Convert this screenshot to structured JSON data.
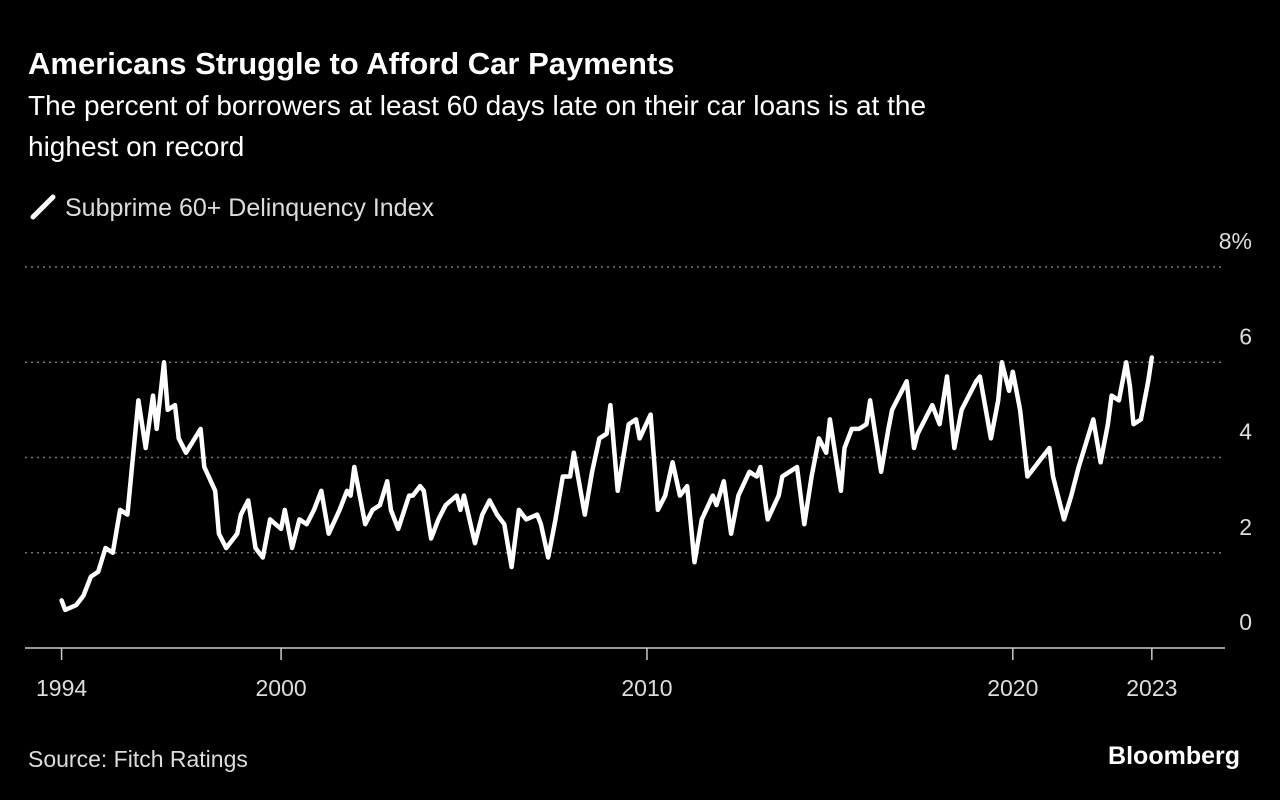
{
  "chart_data": {
    "type": "line",
    "title": "Americans Struggle to Afford Car Payments",
    "subtitle": [
      "The percent of borrowers at least 60 days late on their car loans is at the",
      "highest on record"
    ],
    "source": "Source: Fitch Ratings",
    "brand": "Bloomberg",
    "xlim": [
      1993,
      2025.8
    ],
    "ylim": [
      0,
      8
    ],
    "xticks": [
      1994,
      2000,
      2010,
      2020,
      {
        "value": 2023.8,
        "label": "2023"
      }
    ],
    "yticks": [
      0,
      2,
      4,
      6,
      {
        "value": 8,
        "label": "8%"
      }
    ],
    "grid": true,
    "x": [
      1994.0,
      1994.1,
      1994.4,
      1994.6,
      1994.8,
      1995.0,
      1995.2,
      1995.4,
      1995.6,
      1995.8,
      1996.1,
      1996.3,
      1996.5,
      1996.6,
      1996.8,
      1996.9,
      1997.1,
      1997.2,
      1997.4,
      1997.8,
      1997.9,
      1998.2,
      1998.3,
      1998.5,
      1998.8,
      1998.9,
      1999.1,
      1999.3,
      1999.5,
      1999.7,
      2000.0,
      2000.1,
      2000.3,
      2000.5,
      2000.7,
      2000.9,
      2001.1,
      2001.3,
      2001.6,
      2001.8,
      2001.9,
      2002.0,
      2002.3,
      2002.5,
      2002.7,
      2002.9,
      2003.0,
      2003.2,
      2003.5,
      2003.6,
      2003.8,
      2003.9,
      2004.1,
      2004.3,
      2004.5,
      2004.8,
      2004.9,
      2005.0,
      2005.3,
      2005.5,
      2005.7,
      2005.9,
      2006.1,
      2006.3,
      2006.5,
      2006.7,
      2007.0,
      2007.1,
      2007.3,
      2007.5,
      2007.7,
      2007.9,
      2008.0,
      2008.3,
      2008.5,
      2008.7,
      2008.9,
      2009.0,
      2009.2,
      2009.5,
      2009.7,
      2009.8,
      2010.1,
      2010.3,
      2010.5,
      2010.7,
      2010.9,
      2011.1,
      2011.3,
      2011.5,
      2011.8,
      2011.9,
      2012.1,
      2012.3,
      2012.5,
      2012.8,
      2013.0,
      2013.1,
      2013.3,
      2013.6,
      2013.7,
      2013.9,
      2014.1,
      2014.3,
      2014.5,
      2014.7,
      2014.9,
      2015.0,
      2015.3,
      2015.4,
      2015.6,
      2015.8,
      2016.0,
      2016.1,
      2016.4,
      2016.6,
      2016.7,
      2016.9,
      2017.1,
      2017.3,
      2017.4,
      2017.6,
      2017.8,
      2018.0,
      2018.2,
      2018.4,
      2018.6,
      2018.8,
      2019.0,
      2019.1,
      2019.4,
      2019.6,
      2019.7,
      2019.9,
      2020.0,
      2020.2,
      2020.4,
      2020.7,
      2021.0,
      2021.1,
      2021.4,
      2021.6,
      2021.8,
      2022.0,
      2022.2,
      2022.4,
      2022.6,
      2022.7,
      2022.9,
      2023.1,
      2023.2,
      2023.3,
      2023.5,
      2023.7,
      2023.8
    ],
    "series": [
      {
        "name": "Subprime 60+ Delinquency Index",
        "color": "#ffffff",
        "values": [
          1.0,
          0.8,
          0.9,
          1.1,
          1.5,
          1.6,
          2.1,
          2.0,
          2.9,
          2.8,
          5.2,
          4.2,
          5.3,
          4.6,
          6.0,
          5.0,
          5.1,
          4.4,
          4.1,
          4.6,
          3.8,
          3.3,
          2.4,
          2.1,
          2.4,
          2.8,
          3.1,
          2.1,
          1.9,
          2.7,
          2.5,
          2.9,
          2.1,
          2.7,
          2.6,
          2.9,
          3.3,
          2.4,
          2.9,
          3.3,
          3.2,
          3.8,
          2.6,
          2.9,
          3.0,
          3.5,
          2.9,
          2.5,
          3.2,
          3.2,
          3.4,
          3.3,
          2.3,
          2.7,
          3.0,
          3.2,
          2.9,
          3.2,
          2.2,
          2.8,
          3.1,
          2.8,
          2.6,
          1.7,
          2.9,
          2.7,
          2.8,
          2.6,
          1.9,
          2.7,
          3.6,
          3.6,
          4.1,
          2.8,
          3.7,
          4.4,
          4.5,
          5.1,
          3.3,
          4.7,
          4.8,
          4.4,
          4.9,
          2.9,
          3.2,
          3.9,
          3.2,
          3.4,
          1.8,
          2.7,
          3.2,
          3.0,
          3.5,
          2.4,
          3.2,
          3.7,
          3.6,
          3.8,
          2.7,
          3.2,
          3.6,
          3.7,
          3.8,
          2.6,
          3.6,
          4.4,
          4.1,
          4.8,
          3.3,
          4.2,
          4.6,
          4.6,
          4.7,
          5.2,
          3.7,
          4.6,
          5.0,
          5.3,
          5.6,
          4.2,
          4.5,
          4.8,
          5.1,
          4.7,
          5.7,
          4.2,
          5.0,
          5.3,
          5.6,
          5.7,
          4.4,
          5.2,
          6.0,
          5.4,
          5.8,
          5.0,
          3.6,
          3.9,
          4.2,
          3.6,
          2.7,
          3.2,
          3.8,
          4.3,
          4.8,
          3.9,
          4.7,
          5.3,
          5.2,
          6.0,
          5.5,
          4.7,
          4.8,
          5.6,
          6.1
        ]
      }
    ]
  }
}
